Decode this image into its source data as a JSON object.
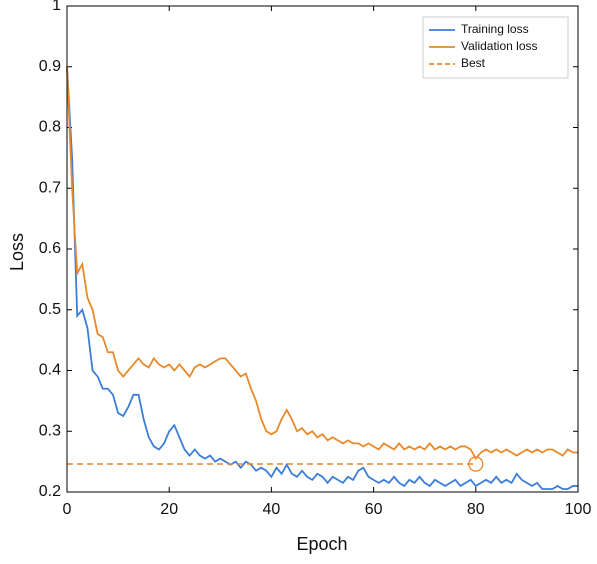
{
  "chart_data": {
    "type": "line",
    "xlabel": "Epoch",
    "ylabel": "Loss",
    "x": [
      0,
      1,
      2,
      3,
      4,
      5,
      6,
      7,
      8,
      9,
      10,
      11,
      12,
      13,
      14,
      15,
      16,
      17,
      18,
      19,
      20,
      21,
      22,
      23,
      24,
      25,
      26,
      27,
      28,
      29,
      30,
      31,
      32,
      33,
      34,
      35,
      36,
      37,
      38,
      39,
      40,
      41,
      42,
      43,
      44,
      45,
      46,
      47,
      48,
      49,
      50,
      51,
      52,
      53,
      54,
      55,
      56,
      57,
      58,
      59,
      60,
      61,
      62,
      63,
      64,
      65,
      66,
      67,
      68,
      69,
      70,
      71,
      72,
      73,
      74,
      75,
      76,
      77,
      78,
      79,
      80,
      81,
      82,
      83,
      84,
      85,
      86,
      87,
      88,
      89,
      90,
      91,
      92,
      93,
      94,
      95,
      96,
      97,
      98,
      99,
      100
    ],
    "series": [
      {
        "name": "Training loss",
        "color": "#3b7dd8",
        "values": [
          0.9,
          0.75,
          0.49,
          0.5,
          0.47,
          0.4,
          0.39,
          0.37,
          0.37,
          0.36,
          0.33,
          0.325,
          0.34,
          0.36,
          0.36,
          0.32,
          0.29,
          0.275,
          0.27,
          0.28,
          0.3,
          0.31,
          0.29,
          0.27,
          0.26,
          0.27,
          0.26,
          0.255,
          0.26,
          0.25,
          0.255,
          0.25,
          0.245,
          0.25,
          0.24,
          0.25,
          0.245,
          0.235,
          0.24,
          0.235,
          0.225,
          0.24,
          0.23,
          0.245,
          0.23,
          0.225,
          0.235,
          0.225,
          0.22,
          0.23,
          0.225,
          0.215,
          0.225,
          0.22,
          0.215,
          0.225,
          0.22,
          0.235,
          0.24,
          0.225,
          0.22,
          0.215,
          0.22,
          0.215,
          0.225,
          0.215,
          0.21,
          0.22,
          0.215,
          0.225,
          0.215,
          0.21,
          0.22,
          0.215,
          0.21,
          0.215,
          0.22,
          0.21,
          0.215,
          0.22,
          0.21,
          0.215,
          0.22,
          0.215,
          0.225,
          0.215,
          0.22,
          0.215,
          0.23,
          0.22,
          0.215,
          0.21,
          0.215,
          0.205,
          0.205,
          0.205,
          0.21,
          0.205,
          0.205,
          0.21,
          0.21
        ]
      },
      {
        "name": "Validation loss",
        "color": "#e8892a",
        "values": [
          0.9,
          0.7,
          0.56,
          0.575,
          0.52,
          0.5,
          0.46,
          0.455,
          0.43,
          0.43,
          0.4,
          0.39,
          0.4,
          0.41,
          0.42,
          0.41,
          0.405,
          0.42,
          0.41,
          0.405,
          0.41,
          0.4,
          0.41,
          0.4,
          0.39,
          0.405,
          0.41,
          0.405,
          0.41,
          0.415,
          0.42,
          0.42,
          0.41,
          0.4,
          0.39,
          0.395,
          0.37,
          0.35,
          0.32,
          0.3,
          0.295,
          0.3,
          0.32,
          0.335,
          0.32,
          0.3,
          0.305,
          0.295,
          0.3,
          0.29,
          0.295,
          0.285,
          0.29,
          0.285,
          0.28,
          0.285,
          0.28,
          0.28,
          0.275,
          0.28,
          0.275,
          0.27,
          0.28,
          0.275,
          0.27,
          0.28,
          0.27,
          0.275,
          0.27,
          0.275,
          0.27,
          0.28,
          0.27,
          0.275,
          0.27,
          0.275,
          0.27,
          0.275,
          0.275,
          0.27,
          0.255,
          0.265,
          0.27,
          0.265,
          0.27,
          0.265,
          0.27,
          0.265,
          0.26,
          0.265,
          0.27,
          0.265,
          0.27,
          0.265,
          0.27,
          0.27,
          0.265,
          0.26,
          0.27,
          0.265,
          0.265
        ]
      }
    ],
    "best": {
      "name": "Best",
      "color": "#e8892a",
      "x": 80,
      "value": 0.246
    },
    "xlim": [
      0,
      100
    ],
    "xticks": [
      0,
      20,
      40,
      60,
      80,
      100
    ],
    "ylim": [
      0.2,
      1
    ],
    "yticks": [
      0.2,
      0.3,
      0.4,
      0.5,
      0.6,
      0.7,
      0.8,
      0.9,
      1
    ],
    "legend": "upper right"
  }
}
